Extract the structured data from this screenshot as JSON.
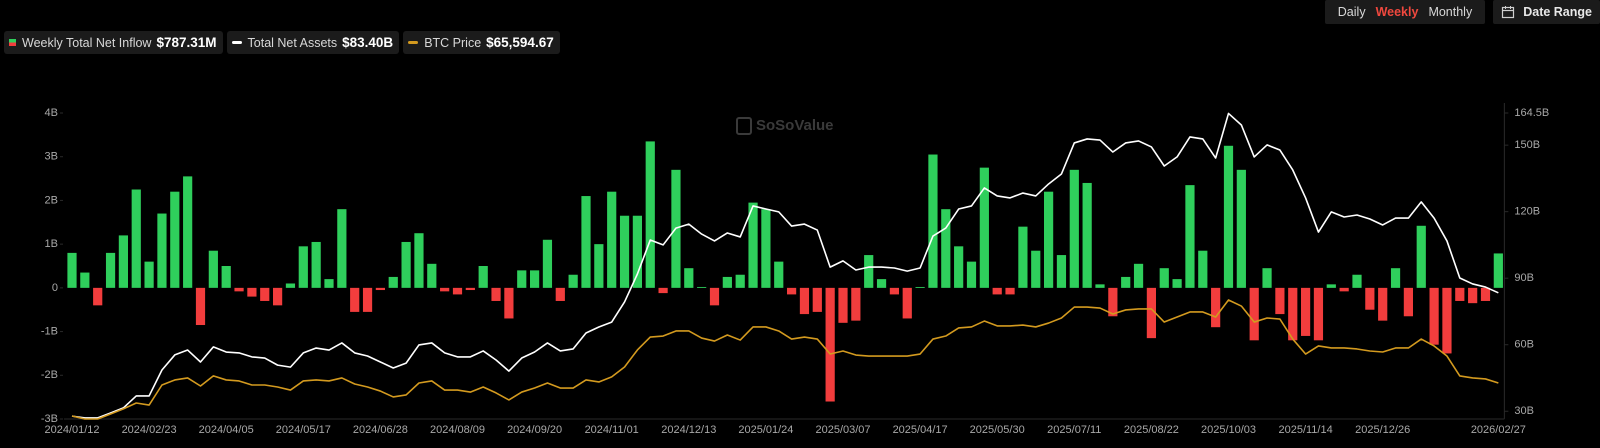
{
  "chart_data": {
    "type": "bar",
    "watermark": "SoSoValue",
    "controls": {
      "periods": [
        "Daily",
        "Weekly",
        "Monthly"
      ],
      "active": 1,
      "active_color": "#f0483e",
      "date_range": "Date Range"
    },
    "categories": [
      "2024/01/12",
      null,
      null,
      null,
      null,
      null,
      "2024/02/23",
      null,
      null,
      null,
      null,
      null,
      "2024/04/05",
      null,
      null,
      null,
      null,
      null,
      "2024/05/17",
      null,
      null,
      null,
      null,
      null,
      "2024/06/28",
      null,
      null,
      null,
      null,
      null,
      "2024/08/09",
      null,
      null,
      null,
      null,
      null,
      "2024/09/20",
      null,
      null,
      null,
      null,
      null,
      "2024/11/01",
      null,
      null,
      null,
      null,
      null,
      "2024/12/13",
      null,
      null,
      null,
      null,
      null,
      "2025/01/24",
      null,
      null,
      null,
      null,
      null,
      "2025/03/07",
      null,
      null,
      null,
      null,
      null,
      "2025/04/17",
      null,
      null,
      null,
      null,
      null,
      "2025/05/30",
      null,
      null,
      null,
      null,
      null,
      "2025/07/11",
      null,
      null,
      null,
      null,
      null,
      "2025/08/22",
      null,
      null,
      null,
      null,
      null,
      "2025/10/03",
      null,
      null,
      null,
      null,
      null,
      "2025/11/14",
      null,
      null,
      null,
      null,
      null,
      "2025/12/26",
      null,
      null,
      null,
      null,
      null,
      null,
      null,
      null,
      "2026/02/27"
    ],
    "ylim": [
      -3,
      4
    ],
    "yticks": [
      {
        "value": -3,
        "label": "-3B"
      },
      {
        "value": -2,
        "label": "-2B"
      },
      {
        "value": -1,
        "label": "-1B"
      },
      {
        "value": 0,
        "label": "0"
      },
      {
        "value": 1,
        "label": "1B"
      },
      {
        "value": 2,
        "label": "2B"
      },
      {
        "value": 3,
        "label": "3B"
      },
      {
        "value": 4,
        "label": "4B"
      }
    ],
    "y2lim": [
      26.5,
      164.5
    ],
    "y2ticks": [
      {
        "value": 30,
        "label": "30B"
      },
      {
        "value": 60,
        "label": "60B"
      },
      {
        "value": 90,
        "label": "90B"
      },
      {
        "value": 120,
        "label": "120B"
      },
      {
        "value": 150,
        "label": "150B"
      },
      {
        "value": 164.5,
        "label": "164.5B"
      }
    ],
    "y3lim": [
      44200,
      226000
    ],
    "series": [
      {
        "name": "Weekly Total Net Inflow",
        "legend_value": "$787.31M",
        "type": "bar",
        "color": "#2fcf5c",
        "negative_color": "#f23d3d",
        "values": [
          0.8,
          0.35,
          -0.4,
          0.8,
          1.2,
          2.25,
          0.6,
          1.7,
          2.2,
          2.55,
          -0.85,
          0.85,
          0.5,
          -0.08,
          -0.2,
          -0.3,
          -0.4,
          0.1,
          0.95,
          1.05,
          0.2,
          1.8,
          -0.55,
          -0.55,
          -0.05,
          0.25,
          1.05,
          1.25,
          0.55,
          -0.08,
          -0.15,
          -0.05,
          0.5,
          -0.3,
          -0.7,
          0.4,
          0.4,
          1.1,
          -0.3,
          0.3,
          2.1,
          1.0,
          2.2,
          1.65,
          1.65,
          3.35,
          -0.12,
          2.7,
          0.45,
          0.02,
          -0.4,
          0.25,
          0.3,
          1.95,
          1.8,
          0.6,
          -0.15,
          -0.6,
          -0.55,
          -2.6,
          -0.8,
          -0.75,
          0.75,
          0.2,
          -0.15,
          -0.7,
          0.02,
          3.05,
          1.8,
          0.95,
          0.6,
          2.75,
          -0.15,
          -0.15,
          1.4,
          0.85,
          2.2,
          0.75,
          2.7,
          2.4,
          0.08,
          -0.65,
          0.25,
          0.55,
          -1.15,
          0.45,
          0.2,
          2.35,
          0.85,
          -0.9,
          3.25,
          2.7,
          -1.2,
          0.45,
          -0.6,
          -1.2,
          -1.1,
          -1.2,
          0.08,
          -0.08,
          0.3,
          -0.5,
          -0.75,
          0.45,
          -0.65,
          1.42,
          -1.3,
          -1.5,
          -0.3,
          -0.35,
          -0.3,
          0.78731
        ]
      },
      {
        "name": "Total Net Assets",
        "legend_value": "$83.40B",
        "type": "line",
        "axis": "y2",
        "color": "#ffffff",
        "values": [
          27.8,
          27,
          27,
          29.2,
          31.5,
          36.9,
          36.9,
          48.6,
          55.4,
          57.6,
          52.2,
          59,
          56.7,
          56.3,
          54.5,
          54,
          50.8,
          49.9,
          56.3,
          58.5,
          57.6,
          60.8,
          56.3,
          54.9,
          52.2,
          49.5,
          51.7,
          59.9,
          60.8,
          56.3,
          54.5,
          54.5,
          57.2,
          53.1,
          48.1,
          54,
          56.7,
          60.8,
          57.2,
          58.1,
          65.3,
          68,
          70.2,
          79.3,
          91.9,
          107.2,
          105,
          112.6,
          114.4,
          109.9,
          106.8,
          110.4,
          108.6,
          122.6,
          121.2,
          119.9,
          113.5,
          114.4,
          111.7,
          95,
          97.8,
          93.7,
          95,
          95,
          94.6,
          93.2,
          94.6,
          109,
          112.6,
          121.2,
          122.6,
          130.7,
          127.1,
          126.2,
          128.4,
          127.1,
          132.5,
          137,
          151,
          152.8,
          152.3,
          146.9,
          151,
          151.9,
          149.2,
          140.6,
          144.7,
          153.7,
          152.8,
          144.2,
          164.3,
          159.1,
          144.7,
          150.1,
          147.8,
          138.8,
          126.2,
          110.8,
          119.9,
          117.6,
          118.5,
          116.7,
          114,
          117.1,
          117.1,
          124.4,
          117.1,
          106.8,
          90.1,
          87.4,
          86,
          83.4
        ]
      },
      {
        "name": "BTC Price",
        "legend_value": "$65,594.67",
        "type": "line",
        "axis": "y3",
        "color": "#d39a1f",
        "values": [
          46000,
          44200,
          44200,
          47200,
          50200,
          53700,
          52500,
          64400,
          67400,
          68600,
          63800,
          69800,
          67400,
          66800,
          64400,
          64400,
          63200,
          61400,
          66800,
          67400,
          66800,
          68600,
          65000,
          63200,
          60800,
          57300,
          58500,
          65600,
          66800,
          61400,
          61400,
          60200,
          63200,
          59700,
          55500,
          60200,
          62600,
          65600,
          62600,
          62600,
          67400,
          66200,
          69200,
          75100,
          85200,
          92900,
          93500,
          96500,
          96500,
          92300,
          90500,
          94100,
          91100,
          98900,
          98900,
          96500,
          91700,
          92900,
          91700,
          82800,
          84600,
          82200,
          81600,
          81600,
          81600,
          81600,
          82800,
          91700,
          93500,
          98300,
          98900,
          102400,
          99500,
          99500,
          100000,
          98900,
          101200,
          104200,
          110700,
          110700,
          110100,
          106600,
          109000,
          109600,
          109600,
          101800,
          104800,
          107800,
          107800,
          104800,
          114900,
          111300,
          101800,
          104200,
          103600,
          91700,
          82800,
          87600,
          86400,
          86400,
          85800,
          84600,
          84000,
          86400,
          86400,
          91700,
          87600,
          81600,
          69800,
          68600,
          68000,
          65594.67
        ]
      }
    ]
  }
}
